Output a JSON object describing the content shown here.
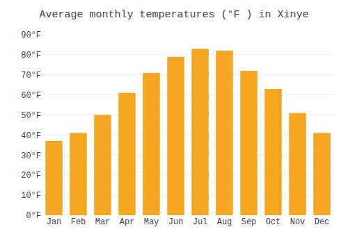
{
  "chart_data": {
    "type": "bar",
    "title": "Average monthly temperatures (°F ) in Xinye",
    "categories": [
      "Jan",
      "Feb",
      "Mar",
      "Apr",
      "May",
      "Jun",
      "Jul",
      "Aug",
      "Sep",
      "Oct",
      "Nov",
      "Dec"
    ],
    "values": [
      37,
      41,
      50,
      61,
      71,
      79,
      83,
      82,
      72,
      63,
      51,
      41
    ],
    "color": "#F5A623",
    "ylim": [
      0,
      90
    ],
    "yticks": [
      {
        "value": 0,
        "label": "0°F"
      },
      {
        "value": 10,
        "label": "10°F"
      },
      {
        "value": 20,
        "label": "20°F"
      },
      {
        "value": 30,
        "label": "30°F"
      },
      {
        "value": 40,
        "label": "40°F"
      },
      {
        "value": 50,
        "label": "50°F"
      },
      {
        "value": 60,
        "label": "60°F"
      },
      {
        "value": 70,
        "label": "70°F"
      },
      {
        "value": 80,
        "label": "80°F"
      },
      {
        "value": 90,
        "label": "90°F"
      }
    ],
    "grid": true
  }
}
